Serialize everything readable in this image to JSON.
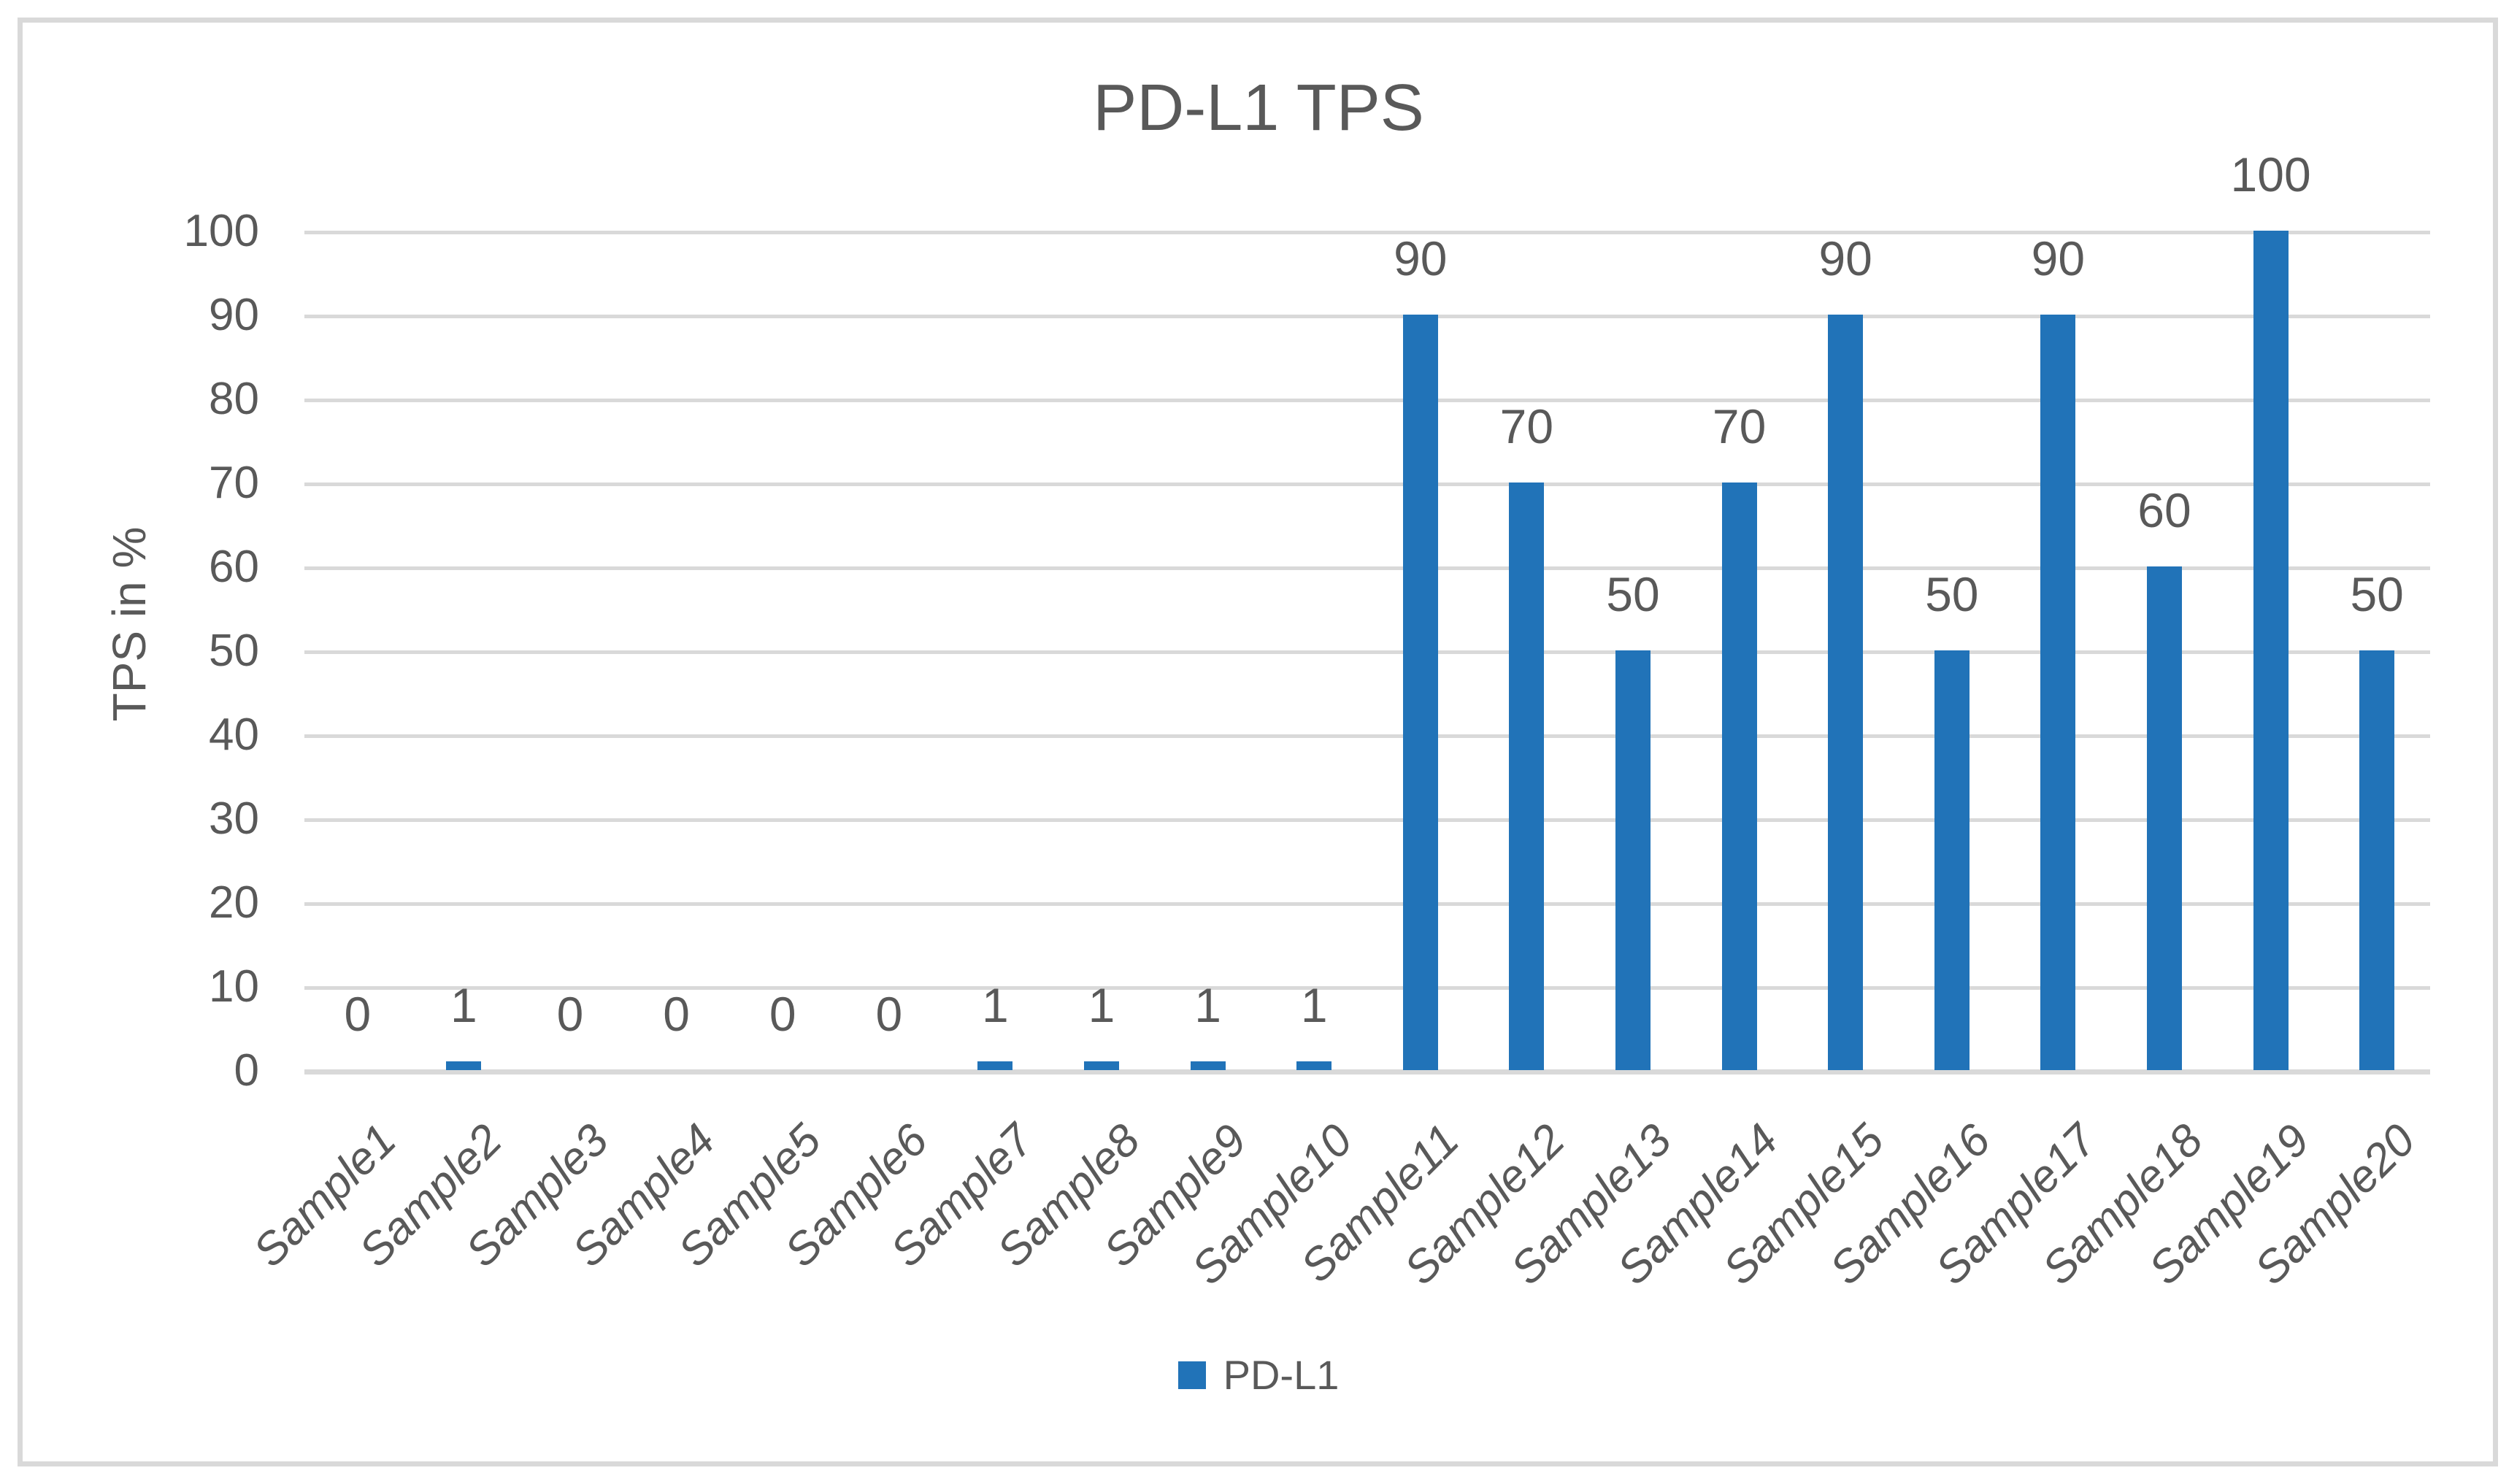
{
  "chart_data": {
    "type": "bar",
    "title": "PD-L1 TPS",
    "ylabel": "TPS in %",
    "xlabel": "",
    "categories": [
      "Sample1",
      "Sample2",
      "Sample3",
      "Sample4",
      "Sample5",
      "Sample6",
      "Sample7",
      "Sample8",
      "Sample9",
      "Sample10",
      "Sample11",
      "Sample12",
      "Sample13",
      "Sample14",
      "Sample15",
      "Sample16",
      "Sample17",
      "Sample18",
      "Sample19",
      "Sample20"
    ],
    "series": [
      {
        "name": "PD-L1",
        "values": [
          0,
          1,
          0,
          0,
          0,
          0,
          1,
          1,
          1,
          1,
          90,
          70,
          50,
          70,
          90,
          50,
          90,
          60,
          100,
          50
        ]
      }
    ],
    "data_labels": [
      0,
      1,
      0,
      0,
      0,
      0,
      1,
      1,
      1,
      1,
      90,
      70,
      50,
      70,
      90,
      50,
      90,
      60,
      100,
      50
    ],
    "yticks": [
      0,
      10,
      20,
      30,
      40,
      50,
      60,
      70,
      80,
      90,
      100
    ],
    "ylim": [
      0,
      100
    ],
    "grid": true,
    "legend_position": "bottom",
    "legend_label": "PD-L1",
    "colors": {
      "bar": "#2173B8",
      "gridline": "#D9D9D9",
      "text": "#595959",
      "border": "#D9D9D9",
      "background": "#FFFFFF"
    }
  }
}
